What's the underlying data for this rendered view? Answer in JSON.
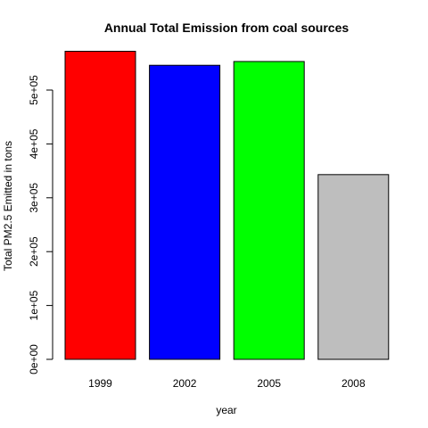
{
  "chart_data": {
    "type": "bar",
    "title": "Annual Total Emission from coal sources",
    "xlabel": "year",
    "ylabel": "Total PM2.5 Emitted in tons",
    "categories": [
      "1999",
      "2002",
      "2005",
      "2008"
    ],
    "values": [
      572000,
      546000,
      553000,
      343000
    ],
    "colors": [
      "#ff0000",
      "#0000ff",
      "#00ff00",
      "#bebebe"
    ],
    "ylim": [
      0,
      580000
    ],
    "yticks": [
      0,
      100000,
      200000,
      300000,
      400000,
      500000
    ],
    "ytick_labels": [
      "0e+00",
      "1e+05",
      "2e+05",
      "3e+05",
      "4e+05",
      "5e+05"
    ],
    "grid": false,
    "legend": "none"
  }
}
